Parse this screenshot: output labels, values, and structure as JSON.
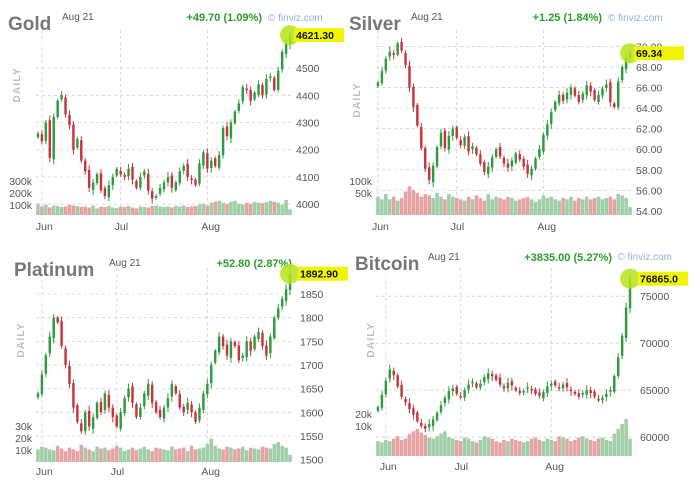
{
  "source_label": "© finviz.com",
  "period_label": "DAILY",
  "colors": {
    "up": "#2e9b3f",
    "down": "#c8343b",
    "vol_up": "#9fcea7",
    "vol_down": "#e6a3a6",
    "change": "#2a9d2a",
    "highlight": "#f2f500",
    "dot": "#b6e21a",
    "grid": "#cfcfcf"
  },
  "chart_data": [
    {
      "type": "candlestick",
      "name": "Gold",
      "date": "Aug 21",
      "change": "+49.70 (1.09%)",
      "last": 4621.3,
      "last_label": "4621.30",
      "ylim": [
        3960,
        4640
      ],
      "y_ticks": [
        4000,
        4100,
        4200,
        4300,
        4400,
        4500
      ],
      "x_labels": [
        "Jun",
        "Jul",
        "Aug"
      ],
      "x_label_index": [
        1,
        21,
        43
      ],
      "vol_ticks": [
        "300k",
        "200k",
        "100k"
      ],
      "vol_max": 360,
      "closes": [
        4260,
        4230,
        4300,
        4170,
        4320,
        4380,
        4400,
        4330,
        4290,
        4200,
        4240,
        4160,
        4120,
        4060,
        4080,
        4110,
        4050,
        4030,
        4070,
        4100,
        4130,
        4110,
        4100,
        4130,
        4090,
        4060,
        4100,
        4120,
        4050,
        4020,
        4030,
        4060,
        4080,
        4100,
        4060,
        4080,
        4120,
        4140,
        4100,
        4090,
        4070,
        4150,
        4190,
        4130,
        4160,
        4140,
        4180,
        4280,
        4250,
        4300,
        4340,
        4370,
        4430,
        4420,
        4380,
        4410,
        4440,
        4400,
        4460,
        4470,
        4420,
        4490,
        4560,
        4590,
        4621
      ],
      "volumes": [
        120,
        90,
        110,
        80,
        100,
        95,
        85,
        90,
        110,
        100,
        95,
        85,
        90,
        80,
        100,
        70,
        90,
        85,
        95,
        80,
        75,
        90,
        85,
        95,
        80,
        70,
        90,
        85,
        80,
        95,
        100,
        90,
        85,
        90,
        80,
        95,
        90,
        100,
        85,
        90,
        95,
        110,
        120,
        100,
        130,
        140,
        150,
        130,
        120,
        140,
        150,
        120,
        110,
        130,
        120,
        140,
        130,
        125,
        135,
        150,
        140,
        130,
        110,
        160,
        60
      ]
    },
    {
      "type": "candlestick",
      "name": "Silver",
      "date": "Aug 21",
      "change": "+1.25 (1.84%)",
      "last": 69.34,
      "last_label": "69.34",
      "ylim": [
        53.6,
        71.6
      ],
      "y_ticks": [
        54.0,
        56.0,
        58.0,
        60.0,
        62.0,
        64.0,
        66.0,
        68.0,
        70.0
      ],
      "x_labels": [
        "Jun",
        "Jul",
        "Aug"
      ],
      "x_label_index": [
        0,
        20,
        42
      ],
      "vol_ticks": [
        "100k",
        "50k"
      ],
      "vol_max": 130,
      "closes": [
        66.5,
        67.6,
        68.8,
        69.5,
        69.2,
        70.3,
        69.6,
        68.2,
        66.0,
        64.1,
        62.3,
        60.1,
        58.1,
        57.0,
        58.4,
        60.2,
        61.6,
        60.1,
        61.3,
        62.0,
        61.1,
        60.4,
        61.2,
        59.8,
        60.3,
        59.5,
        58.6,
        57.8,
        58.3,
        59.2,
        60.0,
        59.3,
        58.6,
        58.2,
        58.9,
        59.6,
        59.0,
        58.3,
        57.6,
        58.1,
        59.1,
        60.0,
        61.4,
        62.4,
        63.6,
        64.6,
        65.3,
        64.7,
        65.5,
        66.0,
        65.2,
        64.6,
        65.4,
        66.2,
        65.6,
        64.8,
        65.3,
        65.9,
        66.3,
        64.6,
        64.1,
        66.6,
        68.0,
        68.9,
        69.34
      ],
      "volumes": [
        70,
        60,
        80,
        60,
        70,
        55,
        65,
        90,
        110,
        95,
        85,
        70,
        80,
        75,
        65,
        85,
        70,
        60,
        80,
        70,
        65,
        60,
        55,
        70,
        60,
        75,
        65,
        55,
        80,
        60,
        70,
        65,
        60,
        70,
        65,
        55,
        60,
        65,
        70,
        60,
        50,
        60,
        75,
        65,
        70,
        60,
        55,
        65,
        60,
        70,
        55,
        65,
        60,
        70,
        60,
        65,
        70,
        60,
        65,
        70,
        60,
        80,
        75,
        65,
        30
      ]
    },
    {
      "type": "candlestick",
      "name": "Platinum",
      "date": "Aug 21",
      "change": "+52.80 (2.87%)",
      "last": 1892.9,
      "last_label": "1892.90",
      "ylim": [
        1495,
        1905
      ],
      "y_ticks": [
        1500,
        1550,
        1600,
        1650,
        1700,
        1750,
        1800,
        1850
      ],
      "x_labels": [
        "Jun",
        "Jul",
        "Aug"
      ],
      "x_label_index": [
        1,
        20,
        43
      ],
      "vol_ticks": [
        "30k",
        "20k",
        "10k"
      ],
      "vol_max": 40,
      "closes": [
        1640,
        1680,
        1720,
        1760,
        1800,
        1790,
        1740,
        1700,
        1660,
        1610,
        1580,
        1560,
        1600,
        1570,
        1590,
        1620,
        1600,
        1640,
        1610,
        1590,
        1570,
        1600,
        1630,
        1650,
        1620,
        1590,
        1610,
        1640,
        1660,
        1620,
        1600,
        1590,
        1610,
        1630,
        1660,
        1640,
        1610,
        1600,
        1620,
        1600,
        1580,
        1610,
        1640,
        1660,
        1700,
        1730,
        1760,
        1740,
        1720,
        1750,
        1740,
        1710,
        1720,
        1750,
        1730,
        1760,
        1770,
        1740,
        1720,
        1760,
        1800,
        1820,
        1840,
        1860,
        1892
      ],
      "volumes": [
        14,
        17,
        16,
        14,
        13,
        18,
        15,
        12,
        16,
        14,
        12,
        19,
        16,
        14,
        12,
        17,
        15,
        16,
        13,
        15,
        18,
        16,
        12,
        14,
        16,
        13,
        15,
        17,
        14,
        12,
        16,
        15,
        14,
        13,
        17,
        14,
        15,
        16,
        12,
        18,
        14,
        15,
        16,
        20,
        26,
        18,
        15,
        14,
        17,
        16,
        14,
        15,
        17,
        13,
        16,
        15,
        14,
        17,
        16,
        15,
        20,
        22,
        18,
        16,
        8
      ]
    },
    {
      "type": "candlestick",
      "name": "Bitcoin",
      "date": "Aug 21",
      "change": "+3835.00 (5.27%)",
      "last": 76865.0,
      "last_label": "76865.0",
      "ylim": [
        58000,
        78000
      ],
      "y_ticks": [
        60000,
        65000,
        70000,
        75000
      ],
      "x_labels": [
        "Jun",
        "Jul",
        "Aug"
      ],
      "x_label_index": [
        2,
        21,
        44
      ],
      "vol_ticks": [
        "20k",
        "10k"
      ],
      "vol_max": 34,
      "closes": [
        63200,
        64500,
        66000,
        67200,
        66600,
        65400,
        64300,
        63700,
        63000,
        62400,
        61700,
        61200,
        60900,
        61400,
        61900,
        62600,
        63400,
        64200,
        64900,
        65200,
        64600,
        64300,
        65000,
        65600,
        65900,
        65300,
        65700,
        66400,
        66800,
        66500,
        66100,
        65600,
        65200,
        65800,
        65500,
        65000,
        64700,
        64900,
        65300,
        65100,
        64600,
        64400,
        64800,
        65400,
        65700,
        65500,
        65200,
        65600,
        65300,
        64900,
        64600,
        64300,
        64700,
        65000,
        64700,
        64300,
        64000,
        64200,
        64600,
        65000,
        66500,
        68500,
        70800,
        73800,
        76865
      ],
      "volumes": [
        12,
        11,
        13,
        12,
        14,
        16,
        13,
        14,
        18,
        20,
        22,
        19,
        17,
        15,
        14,
        16,
        18,
        20,
        15,
        14,
        13,
        12,
        15,
        14,
        12,
        11,
        13,
        16,
        15,
        14,
        12,
        11,
        13,
        12,
        14,
        13,
        12,
        11,
        12,
        14,
        15,
        13,
        12,
        14,
        13,
        12,
        16,
        15,
        14,
        12,
        13,
        15,
        16,
        14,
        13,
        12,
        14,
        15,
        13,
        12,
        18,
        22,
        26,
        30,
        14
      ]
    }
  ],
  "panels_meta": [
    "gold-panel",
    "silver-panel",
    "platinum-panel",
    "bitcoin-panel"
  ]
}
